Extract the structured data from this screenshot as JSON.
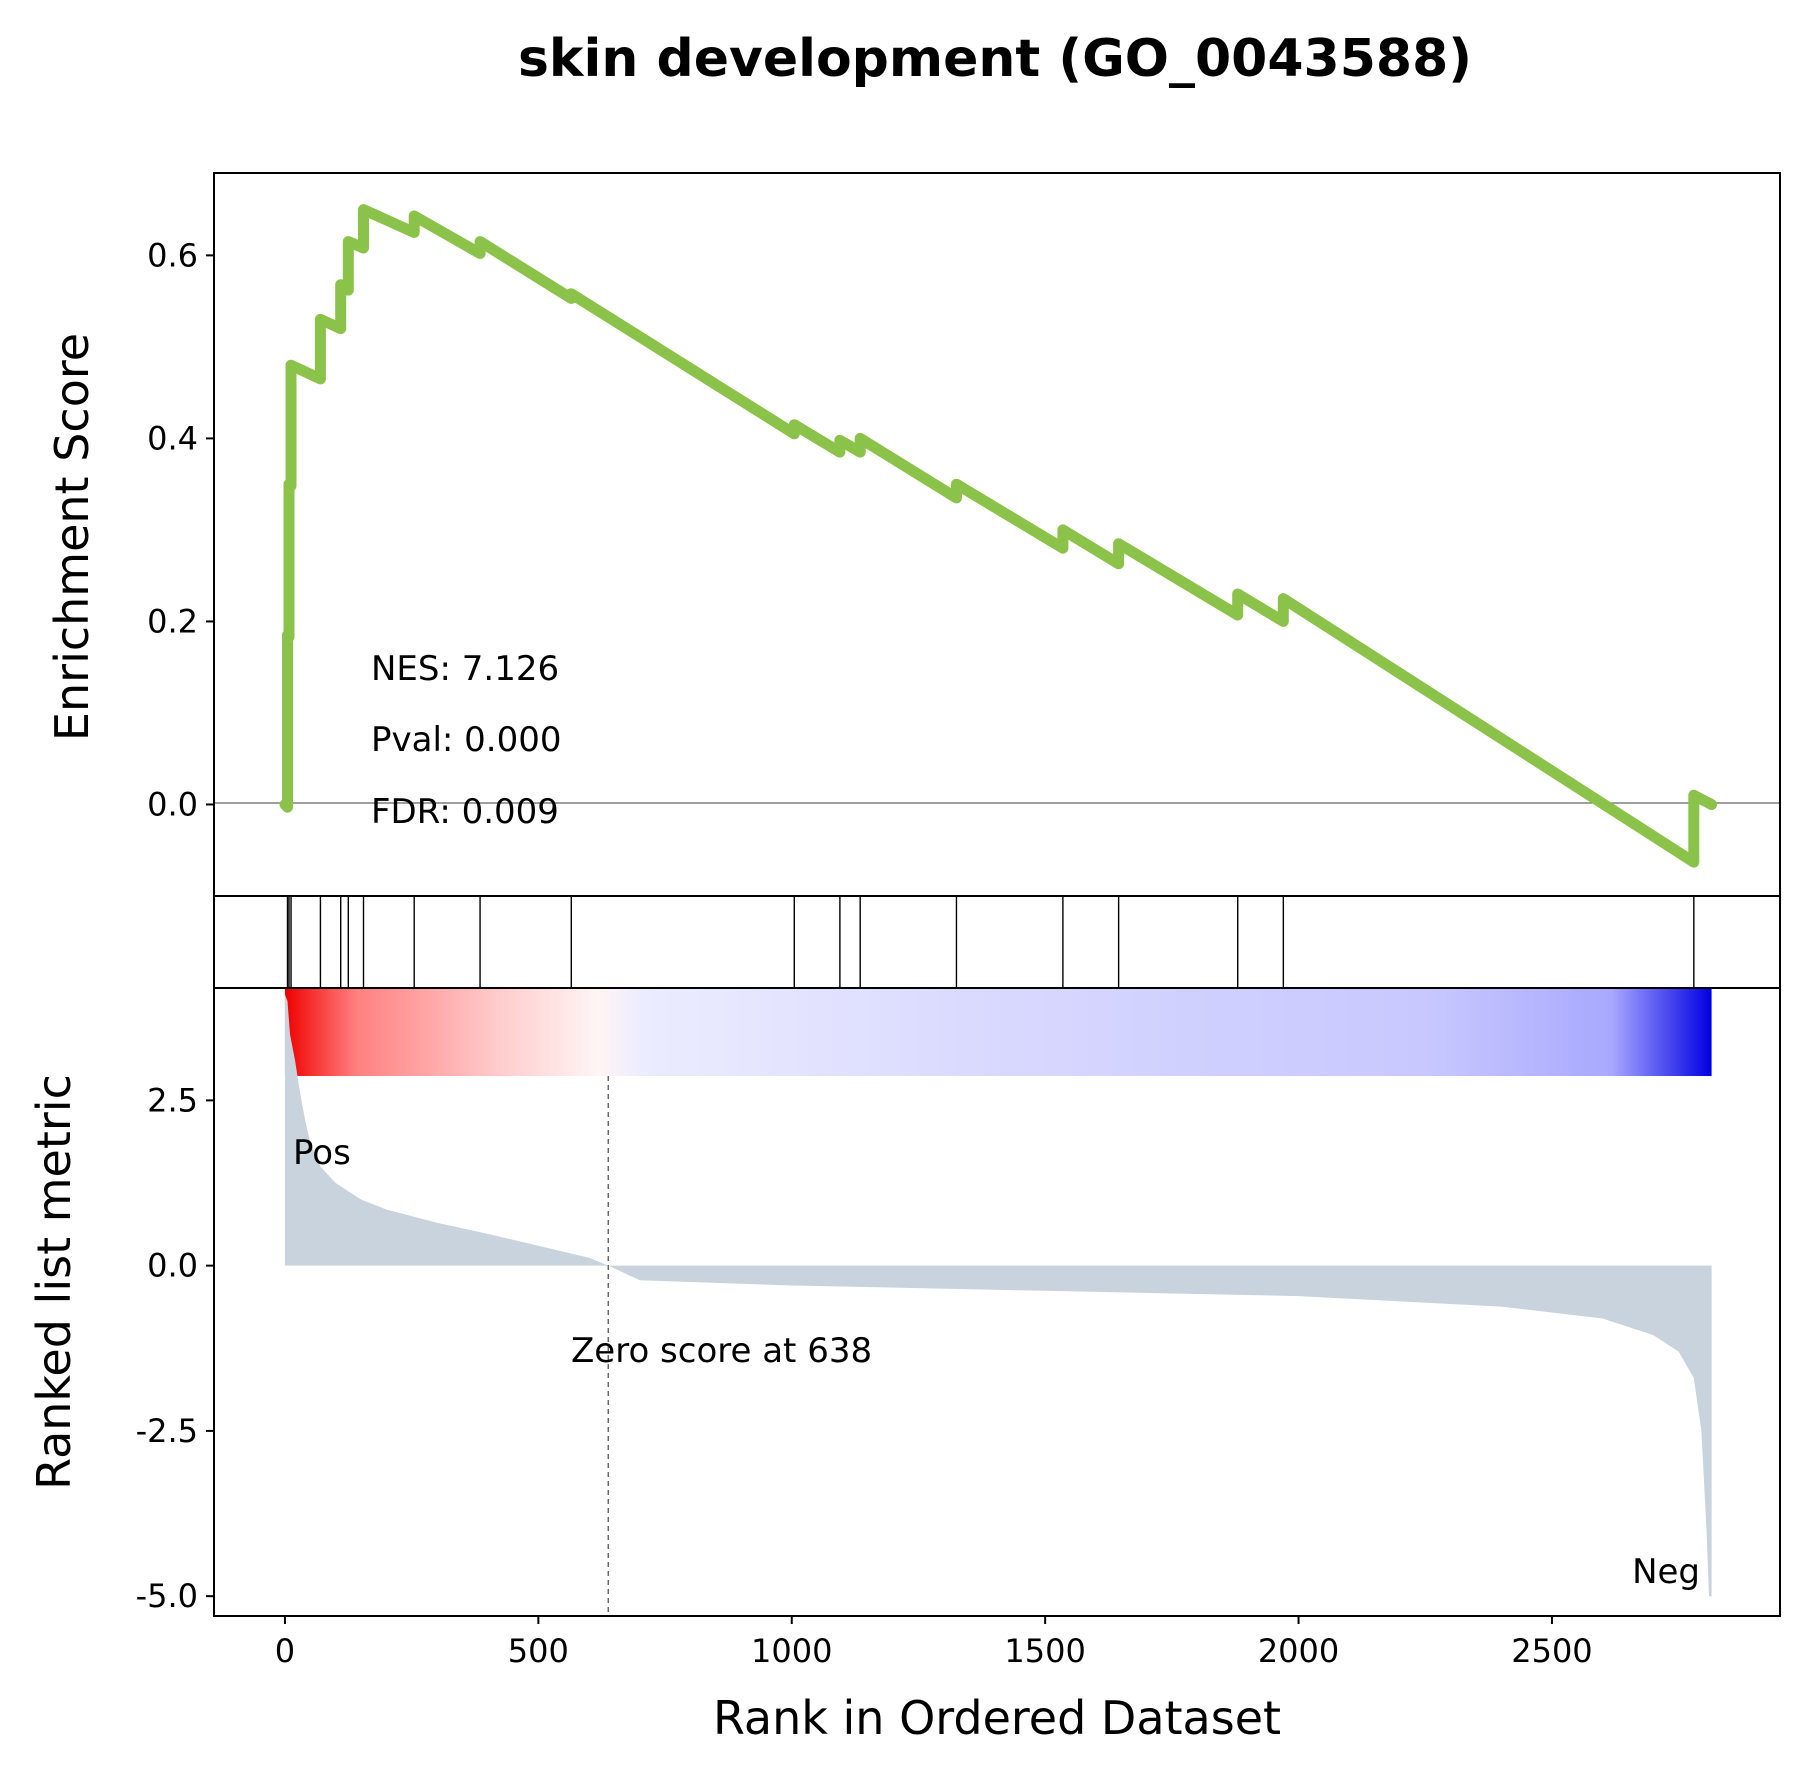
{
  "chart_data": {
    "type": "line",
    "title": "skin development (GO_0043588)",
    "xlabel": "Rank in Ordered Dataset",
    "xlim": [
      -140,
      2950
    ],
    "xticks": [
      0,
      500,
      1000,
      1500,
      2000,
      2500
    ],
    "panels": {
      "enrichment": {
        "ylabel": "Enrichment Score",
        "ylim": [
          -0.1,
          0.69
        ],
        "yticks": [
          "0.0",
          "0.2",
          "0.4",
          "0.6"
        ],
        "ytick_values": [
          0.0,
          0.2,
          0.4,
          0.6
        ],
        "line_color": "#8bc34a",
        "running_es": [
          [
            0,
            0.0
          ],
          [
            5,
            -0.003
          ],
          [
            5,
            0.185
          ],
          [
            8,
            0.183
          ],
          [
            8,
            0.35
          ],
          [
            12,
            0.348
          ],
          [
            12,
            0.48
          ],
          [
            70,
            0.465
          ],
          [
            70,
            0.53
          ],
          [
            110,
            0.52
          ],
          [
            110,
            0.568
          ],
          [
            125,
            0.562
          ],
          [
            125,
            0.615
          ],
          [
            155,
            0.608
          ],
          [
            155,
            0.65
          ],
          [
            255,
            0.625
          ],
          [
            255,
            0.643
          ],
          [
            385,
            0.602
          ],
          [
            385,
            0.615
          ],
          [
            565,
            0.553
          ],
          [
            565,
            0.558
          ],
          [
            1005,
            0.405
          ],
          [
            1005,
            0.415
          ],
          [
            1095,
            0.385
          ],
          [
            1095,
            0.398
          ],
          [
            1135,
            0.385
          ],
          [
            1135,
            0.4
          ],
          [
            1325,
            0.335
          ],
          [
            1325,
            0.35
          ],
          [
            1535,
            0.28
          ],
          [
            1535,
            0.3
          ],
          [
            1645,
            0.263
          ],
          [
            1645,
            0.285
          ],
          [
            1880,
            0.207
          ],
          [
            1880,
            0.23
          ],
          [
            1970,
            0.2
          ],
          [
            1970,
            0.225
          ],
          [
            2780,
            -0.063
          ],
          [
            2780,
            0.01
          ],
          [
            2815,
            0.0
          ]
        ],
        "annotations": {
          "nes": "NES: 7.126",
          "pval": "Pval: 0.000",
          "fdr": "FDR: 0.009"
        }
      },
      "hits": {
        "positions": [
          5,
          8,
          12,
          70,
          110,
          125,
          155,
          255,
          385,
          565,
          1005,
          1095,
          1135,
          1325,
          1535,
          1645,
          1880,
          1970,
          2780
        ]
      },
      "heatmap": {
        "x_start": 0,
        "x_end": 2815,
        "colors": [
          "#f00000",
          "#ff8080",
          "#ffcccc",
          "#fff5f5",
          "#ececff",
          "#dcdcff",
          "#cfcfff",
          "#c8c8ff",
          "#a8a8ff",
          "#0000e0"
        ],
        "stops": [
          0,
          0.05,
          0.15,
          0.22,
          0.25,
          0.45,
          0.65,
          0.8,
          0.93,
          1.0
        ]
      },
      "ranked": {
        "ylabel": "Ranked list metric",
        "ylim": [
          -5.3,
          4.2
        ],
        "yticks": [
          "-5.0",
          "-2.5",
          "0.0",
          "2.5"
        ],
        "ytick_values": [
          -5.0,
          -2.5,
          0.0,
          2.5
        ],
        "fill_color": "#c9d3dd",
        "metric": [
          [
            0,
            4.1
          ],
          [
            5,
            4.0
          ],
          [
            10,
            3.5
          ],
          [
            20,
            3.1
          ],
          [
            30,
            2.6
          ],
          [
            40,
            2.2
          ],
          [
            50,
            1.85
          ],
          [
            70,
            1.5
          ],
          [
            100,
            1.25
          ],
          [
            150,
            1.0
          ],
          [
            200,
            0.85
          ],
          [
            300,
            0.65
          ],
          [
            400,
            0.48
          ],
          [
            500,
            0.3
          ],
          [
            600,
            0.12
          ],
          [
            638,
            0.0
          ],
          [
            700,
            -0.22
          ],
          [
            1000,
            -0.3
          ],
          [
            1500,
            -0.38
          ],
          [
            2000,
            -0.46
          ],
          [
            2400,
            -0.62
          ],
          [
            2600,
            -0.8
          ],
          [
            2700,
            -1.05
          ],
          [
            2750,
            -1.3
          ],
          [
            2780,
            -1.7
          ],
          [
            2795,
            -2.5
          ],
          [
            2805,
            -4.0
          ],
          [
            2810,
            -5.0
          ],
          [
            2815,
            -5.0
          ]
        ],
        "zero_at": 638,
        "zero_label": "Zero score at 638",
        "pos_label": "Pos",
        "neg_label": "Neg",
        "pos_color": "#ff0000",
        "neg_color": "#0000ff"
      }
    }
  }
}
